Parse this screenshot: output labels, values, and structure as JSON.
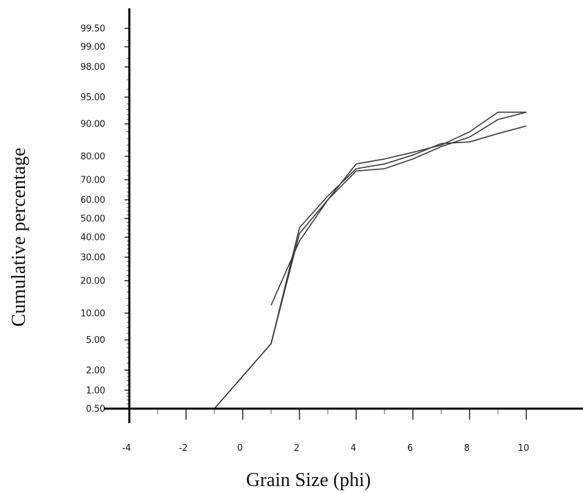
{
  "chart_data": {
    "type": "line",
    "title": "",
    "xlabel": "Grain Size (phi)",
    "ylabel": "Cumulative percentage",
    "xlim": [
      -4,
      11
    ],
    "x_ticks": [
      -4,
      -2,
      0,
      2,
      4,
      6,
      8,
      10
    ],
    "x_tick_labels": [
      "-4",
      "-2",
      "0",
      "2",
      "4",
      "6",
      "8",
      "10"
    ],
    "y_scale": "probability",
    "ylim": [
      0.5,
      99.5
    ],
    "y_ticks": [
      0.5,
      1,
      2,
      5,
      10,
      20,
      30,
      40,
      50,
      60,
      70,
      80,
      90,
      95,
      98,
      99,
      99.5
    ],
    "y_tick_labels": [
      "0.50",
      "1.00",
      "2.00",
      "5.00",
      "10.00",
      "20.00",
      "30.00",
      "40.00",
      "50.00",
      "60.00",
      "70.00",
      "80.00",
      "90.00",
      "95.00",
      "98.00",
      "99.00",
      "99.50"
    ],
    "grid": false,
    "legend": "none",
    "series": [
      {
        "x": [
          -1,
          1,
          2,
          3,
          4,
          5,
          6,
          7,
          8,
          9,
          10
        ],
        "y": [
          0.5,
          4.5,
          45,
          62,
          75,
          77,
          80.5,
          84.5,
          85,
          87.5,
          89.5
        ]
      },
      {
        "x": [
          -1,
          1,
          2,
          3,
          4,
          5,
          6,
          7,
          8,
          9,
          10
        ],
        "y": [
          0.5,
          4.5,
          42,
          60,
          74,
          75,
          79,
          83.5,
          86.5,
          91,
          92.5
        ]
      },
      {
        "x": [
          1,
          2,
          3,
          4,
          5,
          6,
          7,
          8,
          9,
          10
        ],
        "y": [
          12,
          38,
          60,
          77,
          79,
          81.5,
          84,
          88,
          92.5,
          92.5
        ]
      }
    ]
  }
}
